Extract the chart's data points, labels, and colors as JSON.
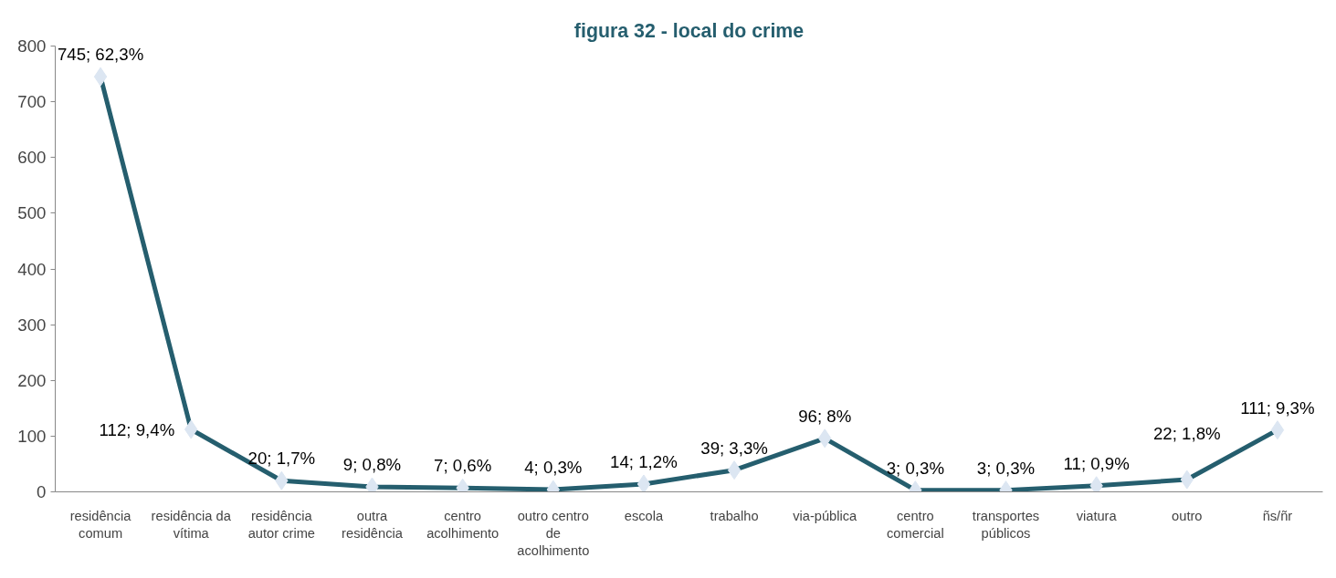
{
  "chart_data": {
    "type": "line",
    "title": "figura 32 - local do crime",
    "categories": [
      "residência comum",
      "residência da vítima",
      "residência autor crime",
      "outra residência",
      "centro acolhimento",
      "outro centro de acolhimento",
      "escola",
      "trabalho",
      "via-pública",
      "centro comercial",
      "transportes públicos",
      "viatura",
      "outro",
      "ñs/ñr"
    ],
    "series": [
      {
        "color": "#255e6e",
        "values": [
          745,
          112,
          20,
          9,
          7,
          4,
          14,
          39,
          96,
          3,
          3,
          11,
          22,
          111
        ],
        "value_labels": [
          "745; 62,3%",
          "112; 9,4%",
          "20; 1,7%",
          "9; 0,8%",
          "7; 0,6%",
          "4; 0,3%",
          "14; 1,2%",
          "39; 3,3%",
          "96; 8%",
          "3; 0,3%",
          "3; 0,3%",
          "11; 0,9%",
          "22; 1,8%",
          "111; 9,3%"
        ]
      }
    ],
    "ylim": [
      0,
      800
    ],
    "yticks": [
      0,
      100,
      200,
      300,
      400,
      500,
      600,
      700,
      800
    ],
    "marker": "diamond",
    "line_style": "solid",
    "grid": false
  }
}
